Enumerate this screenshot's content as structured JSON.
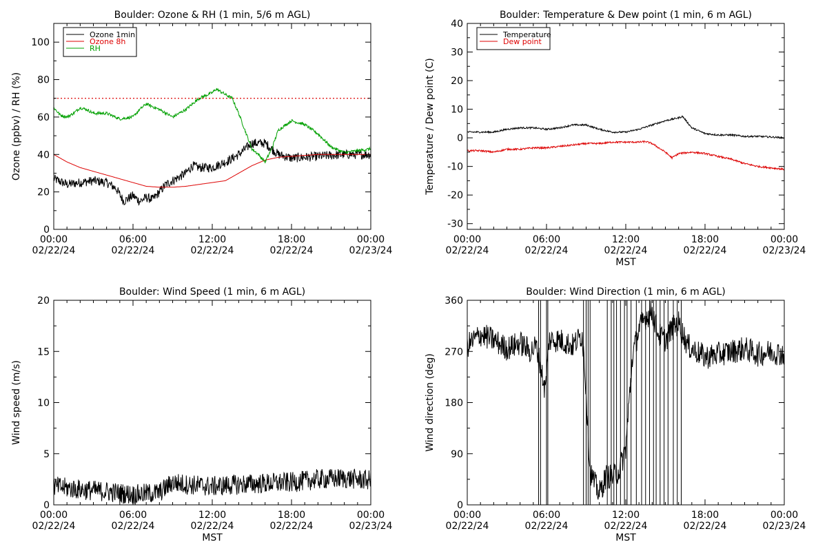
{
  "chart_data": [
    {
      "type": "line",
      "title": "Boulder: Ozone & RH (1 min, 5/6 m AGL)",
      "xlabel": "",
      "ylabel": "Ozone (ppbv) / RH (%)",
      "ylim": [
        0,
        110
      ],
      "yticks": [
        0,
        20,
        40,
        60,
        80,
        100
      ],
      "xticks": [
        {
          "time": "00:00",
          "date": "02/22/24"
        },
        {
          "time": "06:00",
          "date": "02/22/24"
        },
        {
          "time": "12:00",
          "date": "02/22/24"
        },
        {
          "time": "18:00",
          "date": "02/22/24"
        },
        {
          "time": "00:00",
          "date": "02/23/24"
        }
      ],
      "xlim_hours": [
        0,
        24
      ],
      "reference_line": {
        "y": 70,
        "color": "#dd0000",
        "style": "dotted"
      },
      "legend_position": "top-left",
      "series": [
        {
          "name": "Ozone 1min",
          "color": "#000000",
          "noise": 2.5,
          "x": [
            0,
            1,
            2,
            3,
            4,
            4.7,
            5.3,
            6,
            6.5,
            7,
            7.5,
            8,
            8.5,
            9,
            10,
            10.5,
            11,
            12,
            13,
            13.3,
            14,
            14.5,
            15,
            16,
            17,
            18,
            20,
            22,
            24
          ],
          "y": [
            27,
            24,
            25,
            26,
            25,
            22,
            15,
            18,
            15,
            17,
            16,
            20,
            24,
            26,
            30,
            34,
            33,
            33,
            36,
            37,
            40,
            43,
            46,
            46,
            40,
            38,
            39,
            40,
            40
          ]
        },
        {
          "name": "Ozone 8h",
          "color": "#dd0000",
          "noise": 0,
          "x": [
            0,
            1,
            2,
            3,
            4,
            5,
            6,
            7,
            8,
            9,
            10,
            11,
            12,
            13,
            14,
            15,
            16,
            17,
            18,
            19,
            20,
            21,
            22,
            23,
            24
          ],
          "y": [
            40,
            36,
            33,
            31,
            29,
            27,
            25,
            23,
            22.5,
            22.5,
            23,
            24,
            25,
            26,
            30,
            34,
            37,
            38.5,
            39,
            39.5,
            40,
            40,
            40,
            40,
            40
          ]
        },
        {
          "name": "RH",
          "color": "#00a000",
          "noise": 0.8,
          "x": [
            0,
            0.5,
            1,
            1.5,
            2,
            2.5,
            3,
            4,
            5,
            6,
            6.5,
            7,
            8,
            9,
            10,
            11,
            12,
            12.3,
            13,
            13.5,
            14,
            15,
            15.5,
            16,
            16.5,
            17,
            18,
            19,
            20,
            21,
            22,
            23,
            24
          ],
          "y": [
            65,
            61,
            60,
            62,
            65,
            64,
            62,
            62,
            59,
            60,
            64,
            67,
            64,
            60,
            64,
            70,
            73,
            75,
            72,
            70,
            62,
            43,
            40,
            36,
            43,
            53,
            58,
            56,
            51,
            44,
            41,
            42,
            43
          ]
        }
      ]
    },
    {
      "type": "line",
      "title": "Boulder: Temperature & Dew point (1 min, 6 m AGL)",
      "xlabel": "MST",
      "ylabel": "Temperature / Dew point (C)",
      "ylim": [
        -32,
        40
      ],
      "yticks": [
        -30,
        -20,
        -10,
        0,
        10,
        20,
        30,
        40
      ],
      "xticks": [
        {
          "time": "00:00",
          "date": "02/22/24"
        },
        {
          "time": "06:00",
          "date": "02/22/24"
        },
        {
          "time": "12:00",
          "date": "02/22/24"
        },
        {
          "time": "18:00",
          "date": "02/22/24"
        },
        {
          "time": "00:00",
          "date": "02/23/24"
        }
      ],
      "xlim_hours": [
        0,
        24
      ],
      "legend_position": "top-left",
      "series": [
        {
          "name": "Temperature",
          "color": "#000000",
          "noise": 0.3,
          "x": [
            0,
            1,
            2,
            3,
            4,
            5,
            6,
            7,
            8,
            9,
            10,
            11,
            12,
            13,
            14,
            15,
            16,
            16.3,
            17,
            18,
            19,
            20,
            21,
            22,
            23,
            24
          ],
          "y": [
            2,
            2,
            2,
            3,
            3.5,
            3.5,
            3,
            3.5,
            4.5,
            4.5,
            3,
            2,
            2,
            3,
            4.5,
            6,
            7,
            7.5,
            3.5,
            1.5,
            1,
            1,
            0.5,
            0.5,
            0.3,
            0
          ]
        },
        {
          "name": "Dew point",
          "color": "#dd0000",
          "noise": 0.3,
          "x": [
            0,
            1,
            2,
            3,
            4,
            5,
            6,
            7,
            8,
            9,
            10,
            11,
            12,
            13,
            13.5,
            14,
            15,
            15.5,
            16,
            17,
            18,
            19,
            20,
            21,
            22,
            23,
            24
          ],
          "y": [
            -4.5,
            -4.5,
            -5,
            -4,
            -4,
            -3.5,
            -3.5,
            -3,
            -2.5,
            -2,
            -2,
            -1.5,
            -1.5,
            -1.5,
            -1.3,
            -2,
            -5,
            -7,
            -5.5,
            -5,
            -5.5,
            -6.5,
            -7.5,
            -9,
            -10,
            -10.5,
            -11
          ]
        }
      ]
    },
    {
      "type": "line",
      "title": "Boulder: Wind Speed (1 min, 6 m AGL)",
      "xlabel": "MST",
      "ylabel": "Wind speed (m/s)",
      "ylim": [
        0,
        20
      ],
      "yticks": [
        0,
        5,
        10,
        15,
        20
      ],
      "xticks": [
        {
          "time": "00:00",
          "date": "02/22/24"
        },
        {
          "time": "06:00",
          "date": "02/22/24"
        },
        {
          "time": "12:00",
          "date": "02/22/24"
        },
        {
          "time": "18:00",
          "date": "02/22/24"
        },
        {
          "time": "00:00",
          "date": "02/23/24"
        }
      ],
      "xlim_hours": [
        0,
        24
      ],
      "series": [
        {
          "name": "",
          "color": "#000000",
          "noise": 1.0,
          "x": [
            0,
            2,
            4,
            6,
            8,
            9,
            10,
            12,
            14,
            16,
            18,
            20,
            22,
            24
          ],
          "y": [
            1.8,
            1.5,
            1.3,
            1.0,
            1.2,
            2.2,
            2.0,
            1.8,
            2.0,
            2.1,
            2.2,
            2.5,
            2.6,
            2.4
          ]
        }
      ]
    },
    {
      "type": "line",
      "title": "Boulder: Wind Direction (1 min, 6 m AGL)",
      "xlabel": "MST",
      "ylabel": "Wind direction (deg)",
      "ylim": [
        0,
        360
      ],
      "yticks": [
        0,
        90,
        180,
        270,
        360
      ],
      "xticks": [
        {
          "time": "00:00",
          "date": "02/22/24"
        },
        {
          "time": "06:00",
          "date": "02/22/24"
        },
        {
          "time": "12:00",
          "date": "02/22/24"
        },
        {
          "time": "18:00",
          "date": "02/22/24"
        },
        {
          "time": "00:00",
          "date": "02/23/24"
        }
      ],
      "xlim_hours": [
        0,
        24
      ],
      "series": [
        {
          "name": "",
          "color": "#000000",
          "noise": 22,
          "x": [
            0,
            1,
            2,
            3,
            4,
            4.8,
            5.2,
            5.5,
            5.9,
            6.2,
            7,
            8,
            8.7,
            8.9,
            9.3,
            9.6,
            10,
            10.5,
            11,
            11.5,
            12,
            12.5,
            13,
            13.5,
            14,
            14.5,
            15,
            15.5,
            16,
            16.7,
            17,
            18,
            19,
            20,
            21,
            22,
            23,
            24
          ],
          "y": [
            280,
            300,
            290,
            275,
            285,
            270,
            280,
            250,
            200,
            290,
            290,
            280,
            300,
            240,
            60,
            40,
            20,
            50,
            50,
            60,
            100,
            260,
            310,
            330,
            340,
            300,
            290,
            310,
            320,
            280,
            275,
            260,
            265,
            270,
            275,
            265,
            270,
            265
          ]
        }
      ]
    }
  ]
}
